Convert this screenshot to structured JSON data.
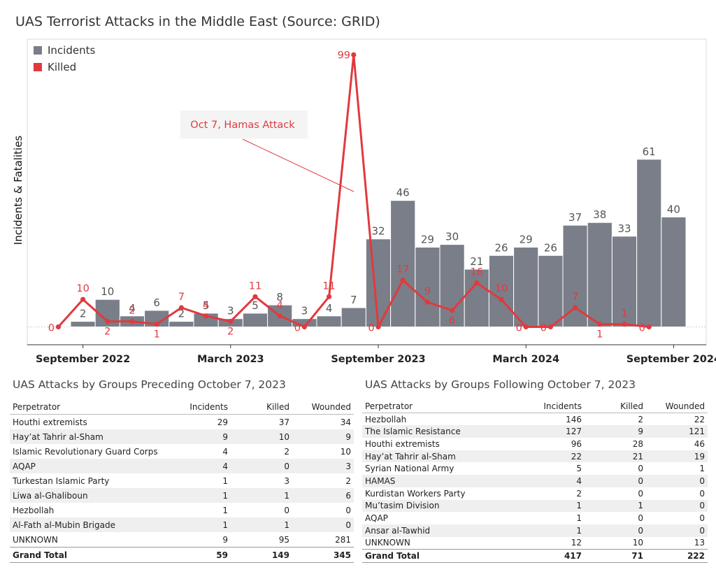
{
  "chart_data": {
    "type": "bar+line",
    "title": "UAS Terrorist Attacks in the Middle East (Source: GRID)",
    "ylabel": "Incidents & Fatalities",
    "xlabel": "",
    "x_tick_labels": [
      "September 2022",
      "March 2023",
      "September 2023",
      "March 2024",
      "September 2024"
    ],
    "x": [
      "Aug 2022",
      "Sep 2022",
      "Oct 2022",
      "Nov 2022",
      "Dec 2022",
      "Jan 2023",
      "Feb 2023",
      "Mar 2023",
      "Apr 2023",
      "May 2023",
      "Jun 2023",
      "Jul 2023",
      "Aug 2023",
      "Sep 2023",
      "Oct 2023",
      "Nov 2023",
      "Dec 2023",
      "Jan 2024",
      "Feb 2024",
      "Mar 2024",
      "Apr 2024",
      "May 2024",
      "Jun 2024",
      "Jul 2024",
      "Aug 2024",
      "Sep 2024",
      "Oct 2024"
    ],
    "series": [
      {
        "name": "Incidents",
        "type": "bar",
        "color": "#7a7e88",
        "values": [
          null,
          2,
          10,
          4,
          6,
          2,
          5,
          3,
          5,
          8,
          3,
          4,
          7,
          32,
          46,
          29,
          30,
          21,
          26,
          29,
          26,
          37,
          38,
          33,
          61,
          40,
          null
        ]
      },
      {
        "name": "Killed",
        "type": "line",
        "color": "#e03a3e",
        "values": [
          0,
          10,
          2,
          2,
          1,
          7,
          4,
          2,
          11,
          4,
          0,
          11,
          99,
          0,
          17,
          9,
          6,
          16,
          10,
          0,
          0,
          7,
          1,
          1,
          0,
          null,
          null
        ]
      }
    ],
    "annotation": {
      "text": "Oct 7, Hamas Attack",
      "color": "#e03a3e"
    },
    "legend_position": "top-left",
    "grid": false
  },
  "table_before": {
    "title": "UAS Attacks by Groups Preceding October 7, 2023",
    "columns": [
      "Perpetrator",
      "Incidents",
      "Killed",
      "Wounded"
    ],
    "rows": [
      [
        "Houthi extremists",
        "29",
        "37",
        "34"
      ],
      [
        "Hay’at Tahrir al-Sham",
        "9",
        "10",
        "9"
      ],
      [
        "Islamic Revolutionary Guard Corps",
        "4",
        "2",
        "10"
      ],
      [
        "AQAP",
        "4",
        "0",
        "3"
      ],
      [
        "Turkestan Islamic Party",
        "1",
        "3",
        "2"
      ],
      [
        "Liwa al-Ghaliboun",
        "1",
        "1",
        "6"
      ],
      [
        "Hezbollah",
        "1",
        "0",
        "0"
      ],
      [
        "Al-Fath al-Mubin Brigade",
        "1",
        "1",
        "0"
      ],
      [
        "UNKNOWN",
        "9",
        "95",
        "281"
      ]
    ],
    "total": [
      "Grand Total",
      "59",
      "149",
      "345"
    ]
  },
  "table_after": {
    "title": "UAS Attacks by Groups Following October 7, 2023",
    "columns": [
      "Perpetrator",
      "Incidents",
      "Killed",
      "Wounded"
    ],
    "rows": [
      [
        "Hezbollah",
        "146",
        "2",
        "22"
      ],
      [
        "The Islamic Resistance",
        "127",
        "9",
        "121"
      ],
      [
        "Houthi extremists",
        "96",
        "28",
        "46"
      ],
      [
        "Hay’at Tahrir al-Sham",
        "22",
        "21",
        "19"
      ],
      [
        "Syrian National Army",
        "5",
        "0",
        "1"
      ],
      [
        "HAMAS",
        "4",
        "0",
        "0"
      ],
      [
        "Kurdistan Workers Party",
        "2",
        "0",
        "0"
      ],
      [
        "Mu’tasim Division",
        "1",
        "1",
        "0"
      ],
      [
        "AQAP",
        "1",
        "0",
        "0"
      ],
      [
        "Ansar al-Tawhid",
        "1",
        "0",
        "0"
      ],
      [
        "UNKNOWN",
        "12",
        "10",
        "13"
      ]
    ],
    "total": [
      "Grand Total",
      "417",
      "71",
      "222"
    ]
  }
}
